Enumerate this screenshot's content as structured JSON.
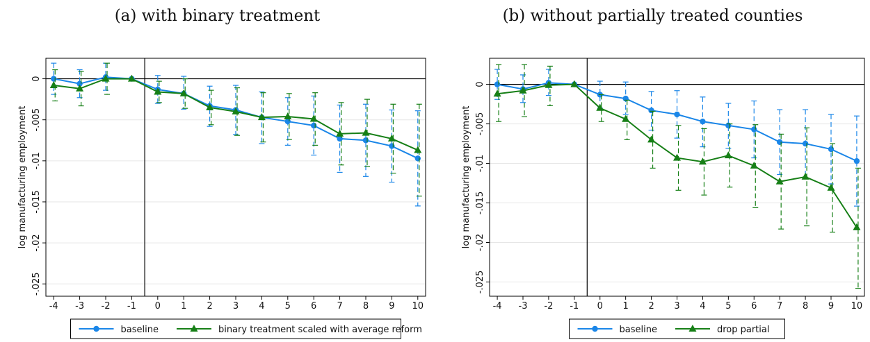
{
  "colors": {
    "baseline": "#1a86e8",
    "series2": "#167f16",
    "axis": "#000000",
    "grid": "#e6e6e6"
  },
  "chart_data": [
    {
      "type": "line",
      "title": "(a) with binary treatment",
      "xlabel": "",
      "ylabel": "log manufacturing employment",
      "x": [
        -4,
        -3,
        -2,
        -1,
        0,
        1,
        2,
        3,
        4,
        5,
        6,
        7,
        8,
        9,
        10
      ],
      "xlim": [
        -4.3,
        10.3
      ],
      "ylim": [
        -0.0265,
        0.0025
      ],
      "yticks": [
        0,
        -0.005,
        -0.01,
        -0.015,
        -0.02,
        -0.025
      ],
      "ytick_labels": [
        "0",
        "-.005",
        "-.01",
        "-.015",
        "-.02",
        "-.025"
      ],
      "event_line_x": -0.5,
      "grid": true,
      "legend_position": "bottom",
      "series": [
        {
          "name": "baseline",
          "marker": "circle",
          "color": "#1a86e8",
          "values": [
            0,
            -0.0006,
            0.0002,
            0,
            -0.0013,
            -0.0018,
            -0.0033,
            -0.0038,
            -0.0047,
            -0.0052,
            -0.0057,
            -0.0073,
            -0.0075,
            -0.0082,
            -0.0097
          ],
          "ci_low": [
            -0.0019,
            -0.0023,
            -0.0014,
            0,
            -0.003,
            -0.0037,
            -0.0058,
            -0.0068,
            -0.0079,
            -0.0081,
            -0.0093,
            -0.0114,
            -0.0119,
            -0.0126,
            -0.0155
          ],
          "ci_high": [
            0.0019,
            0.0011,
            0.0019,
            0,
            0.0004,
            0.0003,
            -0.0009,
            -0.0008,
            -0.0016,
            -0.0023,
            -0.0021,
            -0.0032,
            -0.0031,
            -0.0038,
            -0.0039
          ]
        },
        {
          "name": "binary treatment scaled with average reform",
          "marker": "triangle",
          "color": "#167f16",
          "values": [
            -0.0008,
            -0.0012,
            0,
            0,
            -0.0016,
            -0.0018,
            -0.0035,
            -0.004,
            -0.0047,
            -0.0046,
            -0.0049,
            -0.0067,
            -0.0066,
            -0.0073,
            -0.0087
          ],
          "ci_low": [
            -0.0027,
            -0.0033,
            -0.0019,
            0,
            -0.0029,
            -0.0036,
            -0.0056,
            -0.0069,
            -0.0077,
            -0.0074,
            -0.0081,
            -0.0105,
            -0.0107,
            -0.0115,
            -0.0143
          ],
          "ci_high": [
            0.0011,
            0.0009,
            0.0019,
            0,
            -0.0003,
            0,
            -0.0014,
            -0.0011,
            -0.0017,
            -0.0018,
            -0.0017,
            -0.0029,
            -0.0025,
            -0.0031,
            -0.0031
          ]
        }
      ]
    },
    {
      "type": "line",
      "title": "(b) without partially treated counties",
      "xlabel": "",
      "ylabel": "log manufacturing employment",
      "x": [
        -4,
        -3,
        -2,
        -1,
        0,
        1,
        2,
        3,
        4,
        5,
        6,
        7,
        8,
        9,
        10
      ],
      "xlim": [
        -4.3,
        10.3
      ],
      "ylim": [
        -0.0268,
        0.0033
      ],
      "yticks": [
        0,
        -0.005,
        -0.01,
        -0.015,
        -0.02,
        -0.025
      ],
      "ytick_labels": [
        "0",
        "-.005",
        "-.01",
        "-.015",
        "-.02",
        "-.025"
      ],
      "event_line_x": -0.5,
      "grid": true,
      "legend_position": "bottom",
      "series": [
        {
          "name": "baseline",
          "marker": "circle",
          "color": "#1a86e8",
          "values": [
            0,
            -0.0006,
            0.0002,
            0,
            -0.0013,
            -0.0018,
            -0.0033,
            -0.0038,
            -0.0047,
            -0.0052,
            -0.0057,
            -0.0073,
            -0.0075,
            -0.0082,
            -0.0097
          ],
          "ci_low": [
            -0.0019,
            -0.0023,
            -0.0014,
            0,
            -0.003,
            -0.0038,
            -0.0058,
            -0.0068,
            -0.0079,
            -0.0081,
            -0.0093,
            -0.0114,
            -0.0119,
            -0.0126,
            -0.0154
          ],
          "ci_high": [
            0.0019,
            0.0012,
            0.0019,
            0,
            0.0004,
            0.0003,
            -0.0009,
            -0.0008,
            -0.0016,
            -0.0024,
            -0.0021,
            -0.0032,
            -0.0032,
            -0.0038,
            -0.004
          ]
        },
        {
          "name": "drop partial",
          "marker": "triangle",
          "color": "#167f16",
          "values": [
            -0.0012,
            -0.0008,
            -0.0001,
            0,
            -0.003,
            -0.0044,
            -0.007,
            -0.0093,
            -0.0098,
            -0.009,
            -0.0103,
            -0.0123,
            -0.0117,
            -0.0131,
            -0.0181
          ],
          "ci_low": [
            -0.0047,
            -0.0041,
            -0.0027,
            0,
            -0.0047,
            -0.007,
            -0.0106,
            -0.0134,
            -0.014,
            -0.013,
            -0.0156,
            -0.0183,
            -0.0179,
            -0.0187,
            -0.0258
          ],
          "ci_high": [
            0.0025,
            0.0025,
            0.0023,
            0,
            -0.0013,
            -0.002,
            -0.0034,
            -0.0052,
            -0.0056,
            -0.005,
            -0.0051,
            -0.0063,
            -0.0055,
            -0.0075,
            -0.0106
          ]
        }
      ]
    }
  ]
}
